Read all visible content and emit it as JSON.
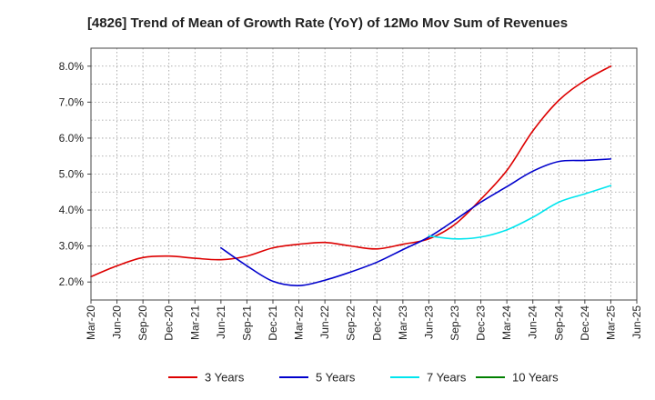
{
  "chart_data": {
    "type": "line",
    "title": "[4826]  Trend of Mean of Growth Rate (YoY) of 12Mo Mov Sum of Revenues",
    "xlabel": "",
    "ylabel": "",
    "x_ticks": [
      "Mar-20",
      "Jun-20",
      "Sep-20",
      "Dec-20",
      "Mar-21",
      "Jun-21",
      "Sep-21",
      "Dec-21",
      "Mar-22",
      "Jun-22",
      "Sep-22",
      "Dec-22",
      "Mar-23",
      "Jun-23",
      "Sep-23",
      "Dec-23",
      "Mar-24",
      "Jun-24",
      "Sep-24",
      "Dec-24",
      "Mar-25",
      "Jun-25"
    ],
    "y_ticks": [
      "2.0%",
      "3.0%",
      "4.0%",
      "5.0%",
      "6.0%",
      "7.0%",
      "8.0%"
    ],
    "ylim": [
      1.5,
      8.5
    ],
    "grid": true,
    "series": [
      {
        "name": "3 Years",
        "color": "#dd0000",
        "x": [
          0,
          1,
          2,
          3,
          4,
          5,
          6,
          7,
          8,
          9,
          10,
          11,
          12,
          13,
          14,
          15,
          16,
          17,
          18,
          19,
          20
        ],
        "values": [
          2.15,
          2.45,
          2.68,
          2.72,
          2.66,
          2.62,
          2.72,
          2.95,
          3.05,
          3.1,
          3.0,
          2.92,
          3.05,
          3.2,
          3.6,
          4.3,
          5.1,
          6.2,
          7.05,
          7.6,
          8.0
        ]
      },
      {
        "name": "5 Years",
        "color": "#0000cc",
        "x": [
          5,
          6,
          7,
          8,
          9,
          10,
          11,
          12,
          13,
          14,
          15,
          16,
          17,
          18,
          19,
          20
        ],
        "values": [
          2.95,
          2.45,
          2.02,
          1.9,
          2.05,
          2.28,
          2.55,
          2.9,
          3.25,
          3.72,
          4.22,
          4.65,
          5.08,
          5.35,
          5.38,
          5.42
        ]
      },
      {
        "name": "7 Years",
        "color": "#00e5ee",
        "x": [
          13,
          14,
          15,
          16,
          17,
          18,
          19,
          20
        ],
        "values": [
          3.28,
          3.2,
          3.25,
          3.45,
          3.8,
          4.22,
          4.45,
          4.68
        ]
      },
      {
        "name": "10 Years",
        "color": "#008000",
        "x": [],
        "values": []
      }
    ]
  }
}
